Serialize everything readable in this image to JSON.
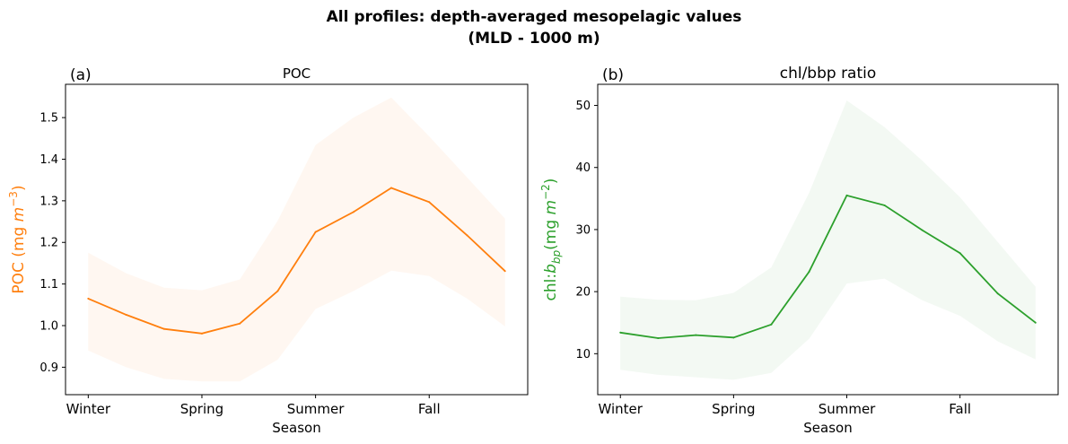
{
  "figure": {
    "title_line1": "All profiles: depth-averaged mesopelagic values",
    "title_line2": "(MLD - 1000 m)"
  },
  "chart_data": [
    {
      "type": "line",
      "panel_label": "(a)",
      "title": "POC",
      "xlabel": "Season",
      "ylabel": "POC (mg m⁻³)",
      "xticks": [
        {
          "x": 0,
          "label": "Winter"
        },
        {
          "x": 3,
          "label": "Spring"
        },
        {
          "x": 6,
          "label": "Summer"
        },
        {
          "x": 9,
          "label": "Fall"
        }
      ],
      "yticks": [
        0.9,
        1.0,
        1.1,
        1.2,
        1.3,
        1.4,
        1.5
      ],
      "xlim": [
        -0.6,
        11.6
      ],
      "ylim": [
        0.834,
        1.58
      ],
      "color": "#ff7f0e",
      "band_color": "#ff7f0e",
      "band_opacity": 0.06,
      "series": [
        {
          "x": [
            0,
            1,
            2,
            3,
            4,
            5,
            6,
            7,
            8,
            9,
            10,
            11
          ],
          "values": [
            1.065,
            1.026,
            0.992,
            0.981,
            1.005,
            1.083,
            1.225,
            1.273,
            1.331,
            1.297,
            1.217,
            1.131
          ],
          "lower": [
            0.94,
            0.9,
            0.872,
            0.866,
            0.866,
            0.918,
            1.04,
            1.083,
            1.132,
            1.119,
            1.065,
            0.998
          ],
          "upper": [
            1.175,
            1.126,
            1.091,
            1.085,
            1.111,
            1.252,
            1.434,
            1.5,
            1.548,
            1.455,
            1.356,
            1.257
          ]
        }
      ]
    },
    {
      "type": "line",
      "panel_label": "(b)",
      "title": "chl/bbp ratio",
      "xlabel": "Season",
      "ylabel": "chl:b_bp (mg m⁻²)",
      "xticks": [
        {
          "x": 0,
          "label": "Winter"
        },
        {
          "x": 3,
          "label": "Spring"
        },
        {
          "x": 6,
          "label": "Summer"
        },
        {
          "x": 9,
          "label": "Fall"
        }
      ],
      "yticks": [
        10,
        20,
        30,
        40,
        50
      ],
      "xlim": [
        -0.6,
        11.6
      ],
      "ylim": [
        3.4,
        53.4
      ],
      "color": "#2ca02c",
      "band_color": "#2ca02c",
      "band_opacity": 0.06,
      "series": [
        {
          "x": [
            0,
            1,
            2,
            3,
            4,
            5,
            6,
            7,
            8,
            9,
            10,
            11
          ],
          "values": [
            13.4,
            12.5,
            13.0,
            12.6,
            14.7,
            23.2,
            35.5,
            33.9,
            29.9,
            26.2,
            19.7,
            15.0
          ],
          "lower": [
            7.4,
            6.6,
            6.2,
            5.8,
            6.9,
            12.4,
            21.3,
            22.1,
            18.6,
            16.1,
            12.0,
            9.1
          ],
          "upper": [
            19.2,
            18.7,
            18.6,
            19.8,
            23.9,
            35.9,
            50.8,
            46.5,
            41.1,
            35.2,
            28.0,
            20.8
          ]
        }
      ]
    }
  ]
}
